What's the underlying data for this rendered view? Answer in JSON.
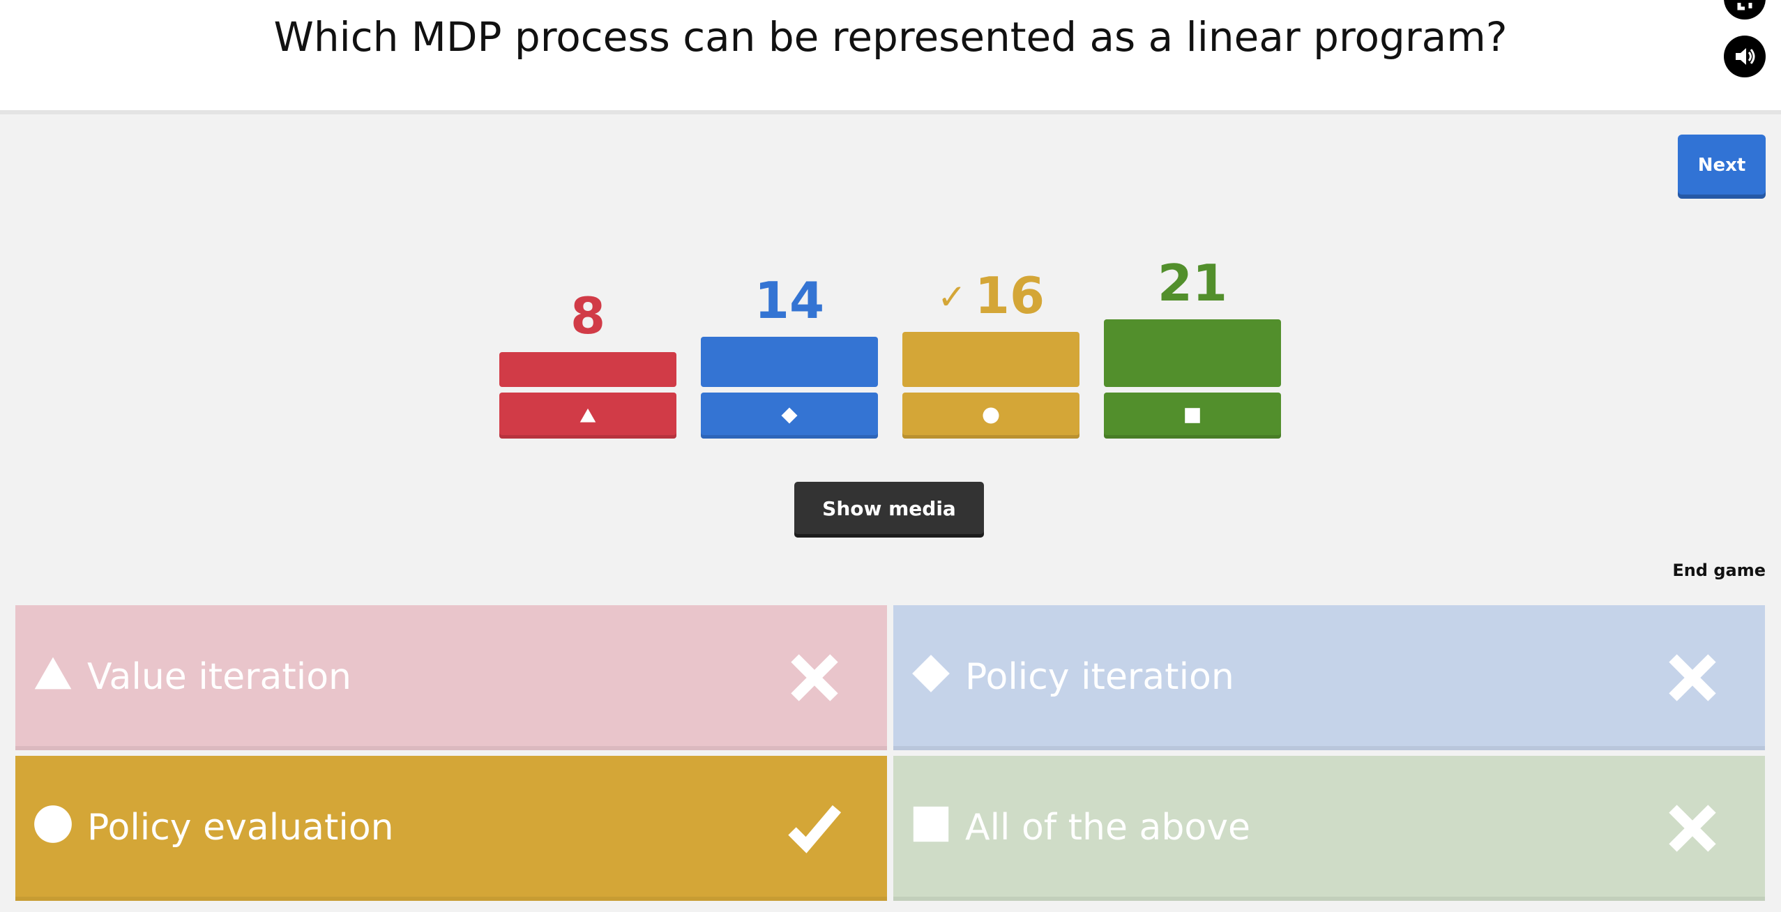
{
  "question": "Which MDP process can be represented as a linear program?",
  "header": {
    "fullscreen_icon": "fullscreen-icon",
    "sound_icon": "sound-icon"
  },
  "next_label": "Next",
  "show_media_label": "Show media",
  "end_game_label": "End game",
  "results": [
    {
      "count": "8",
      "shape": "triangle",
      "color": "#d13b47",
      "correct": false
    },
    {
      "count": "14",
      "shape": "diamond",
      "color": "#3474d3",
      "correct": false
    },
    {
      "count": "16",
      "shape": "circle",
      "color": "#d4a637",
      "correct": true,
      "check": "✓"
    },
    {
      "count": "21",
      "shape": "square",
      "color": "#528f2c",
      "correct": false
    }
  ],
  "answers": [
    {
      "label": "Value iteration",
      "shape": "triangle",
      "correct": false,
      "bg": "#e9c5cb"
    },
    {
      "label": "Policy iteration",
      "shape": "diamond",
      "correct": false,
      "bg": "#c5d3e9"
    },
    {
      "label": "Policy evaluation",
      "shape": "circle",
      "correct": true,
      "bg": "#d4a637"
    },
    {
      "label": "All of the above",
      "shape": "square",
      "correct": false,
      "bg": "#cfdcc7"
    }
  ]
}
